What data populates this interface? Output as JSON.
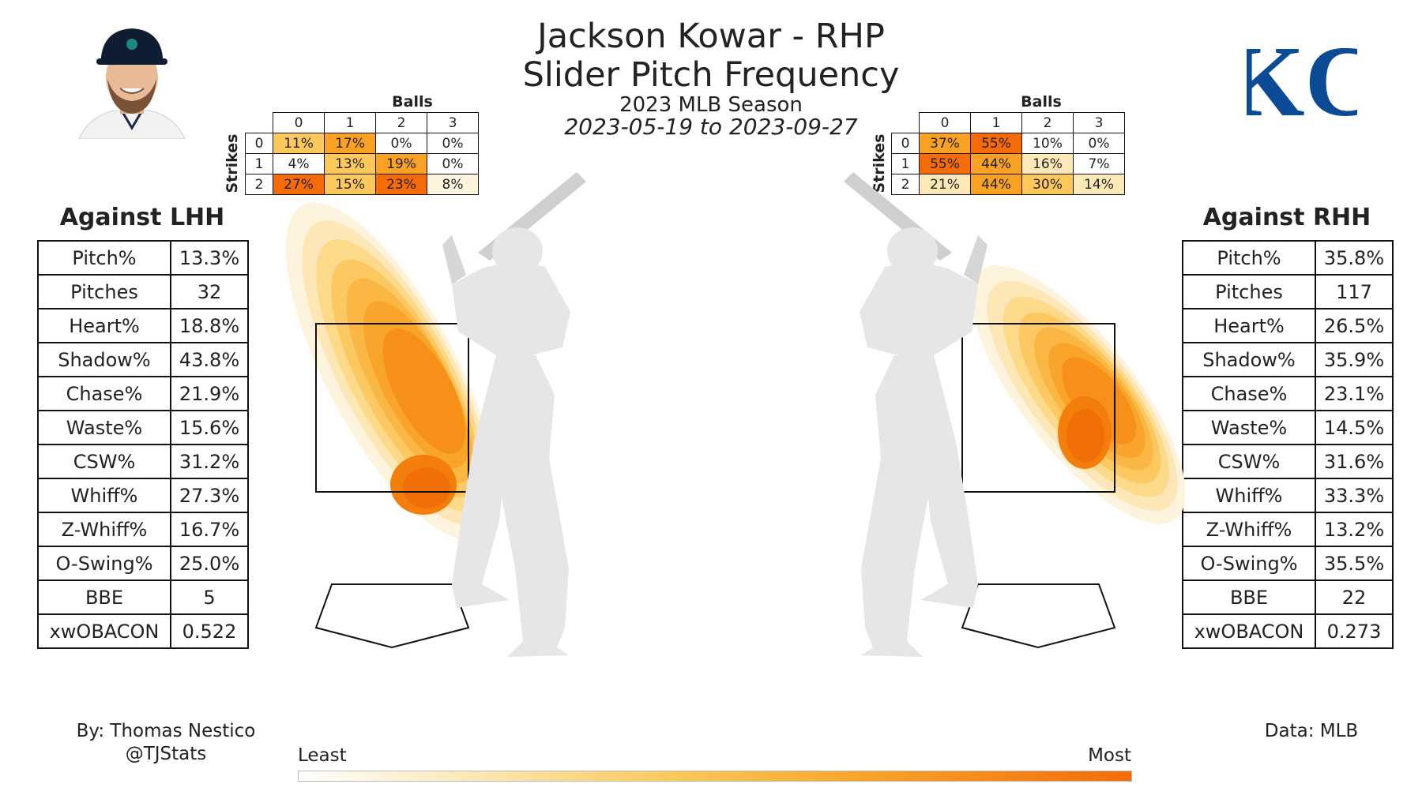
{
  "header": {
    "title_line1": "Jackson Kowar - RHP",
    "title_line2": "Slider Pitch Frequency",
    "season": "2023 MLB Season",
    "date_range": "2023-05-19 to 2023-09-27"
  },
  "team_logo_text": "KC",
  "colors": {
    "team_blue": "#0b4a95",
    "low": "#fdeec8",
    "mid": "#f9a123",
    "high": "#f46b08"
  },
  "chart_data": [
    {
      "type": "table",
      "name": "lhh_count_matrix",
      "col_header": "Balls",
      "row_header": "Strikes",
      "columns": [
        "0",
        "1",
        "2",
        "3"
      ],
      "rows": [
        {
          "label": "0",
          "values": [
            "11%",
            "17%",
            "0%",
            "0%"
          ]
        },
        {
          "label": "1",
          "values": [
            "4%",
            "13%",
            "19%",
            "0%"
          ]
        },
        {
          "label": "2",
          "values": [
            "27%",
            "15%",
            "23%",
            "8%"
          ]
        }
      ]
    },
    {
      "type": "table",
      "name": "rhh_count_matrix",
      "col_header": "Balls",
      "row_header": "Strikes",
      "columns": [
        "0",
        "1",
        "2",
        "3"
      ],
      "rows": [
        {
          "label": "0",
          "values": [
            "37%",
            "55%",
            "10%",
            "0%"
          ]
        },
        {
          "label": "1",
          "values": [
            "55%",
            "44%",
            "16%",
            "7%"
          ]
        },
        {
          "label": "2",
          "values": [
            "21%",
            "44%",
            "30%",
            "14%"
          ]
        }
      ]
    },
    {
      "type": "table",
      "name": "lhh_stats",
      "title": "Against LHH",
      "rows": [
        {
          "label": "Pitch%",
          "value": "13.3%"
        },
        {
          "label": "Pitches",
          "value": "32"
        },
        {
          "label": "Heart%",
          "value": "18.8%"
        },
        {
          "label": "Shadow%",
          "value": "43.8%"
        },
        {
          "label": "Chase%",
          "value": "21.9%"
        },
        {
          "label": "Waste%",
          "value": "15.6%"
        },
        {
          "label": "CSW%",
          "value": "31.2%"
        },
        {
          "label": "Whiff%",
          "value": "27.3%"
        },
        {
          "label": "Z-Whiff%",
          "value": "16.7%"
        },
        {
          "label": "O-Swing%",
          "value": "25.0%"
        },
        {
          "label": "BBE",
          "value": "5"
        },
        {
          "label": "xwOBACON",
          "value": "0.522"
        }
      ]
    },
    {
      "type": "table",
      "name": "rhh_stats",
      "title": "Against RHH",
      "rows": [
        {
          "label": "Pitch%",
          "value": "35.8%"
        },
        {
          "label": "Pitches",
          "value": "117"
        },
        {
          "label": "Heart%",
          "value": "26.5%"
        },
        {
          "label": "Shadow%",
          "value": "35.9%"
        },
        {
          "label": "Chase%",
          "value": "23.1%"
        },
        {
          "label": "Waste%",
          "value": "14.5%"
        },
        {
          "label": "CSW%",
          "value": "31.6%"
        },
        {
          "label": "Whiff%",
          "value": "33.3%"
        },
        {
          "label": "Z-Whiff%",
          "value": "13.2%"
        },
        {
          "label": "O-Swing%",
          "value": "35.5%"
        },
        {
          "label": "BBE",
          "value": "22"
        },
        {
          "label": "xwOBACON",
          "value": "0.273"
        }
      ]
    },
    {
      "type": "heatmap",
      "name": "pitch_location_density",
      "panels": [
        "Against LHH",
        "Against RHH"
      ],
      "colorbar": {
        "min_label": "Least",
        "max_label": "Most"
      }
    }
  ],
  "footer": {
    "author_line1": "By: Thomas Nestico",
    "author_line2": "@TJStats",
    "source": "Data: MLB"
  }
}
